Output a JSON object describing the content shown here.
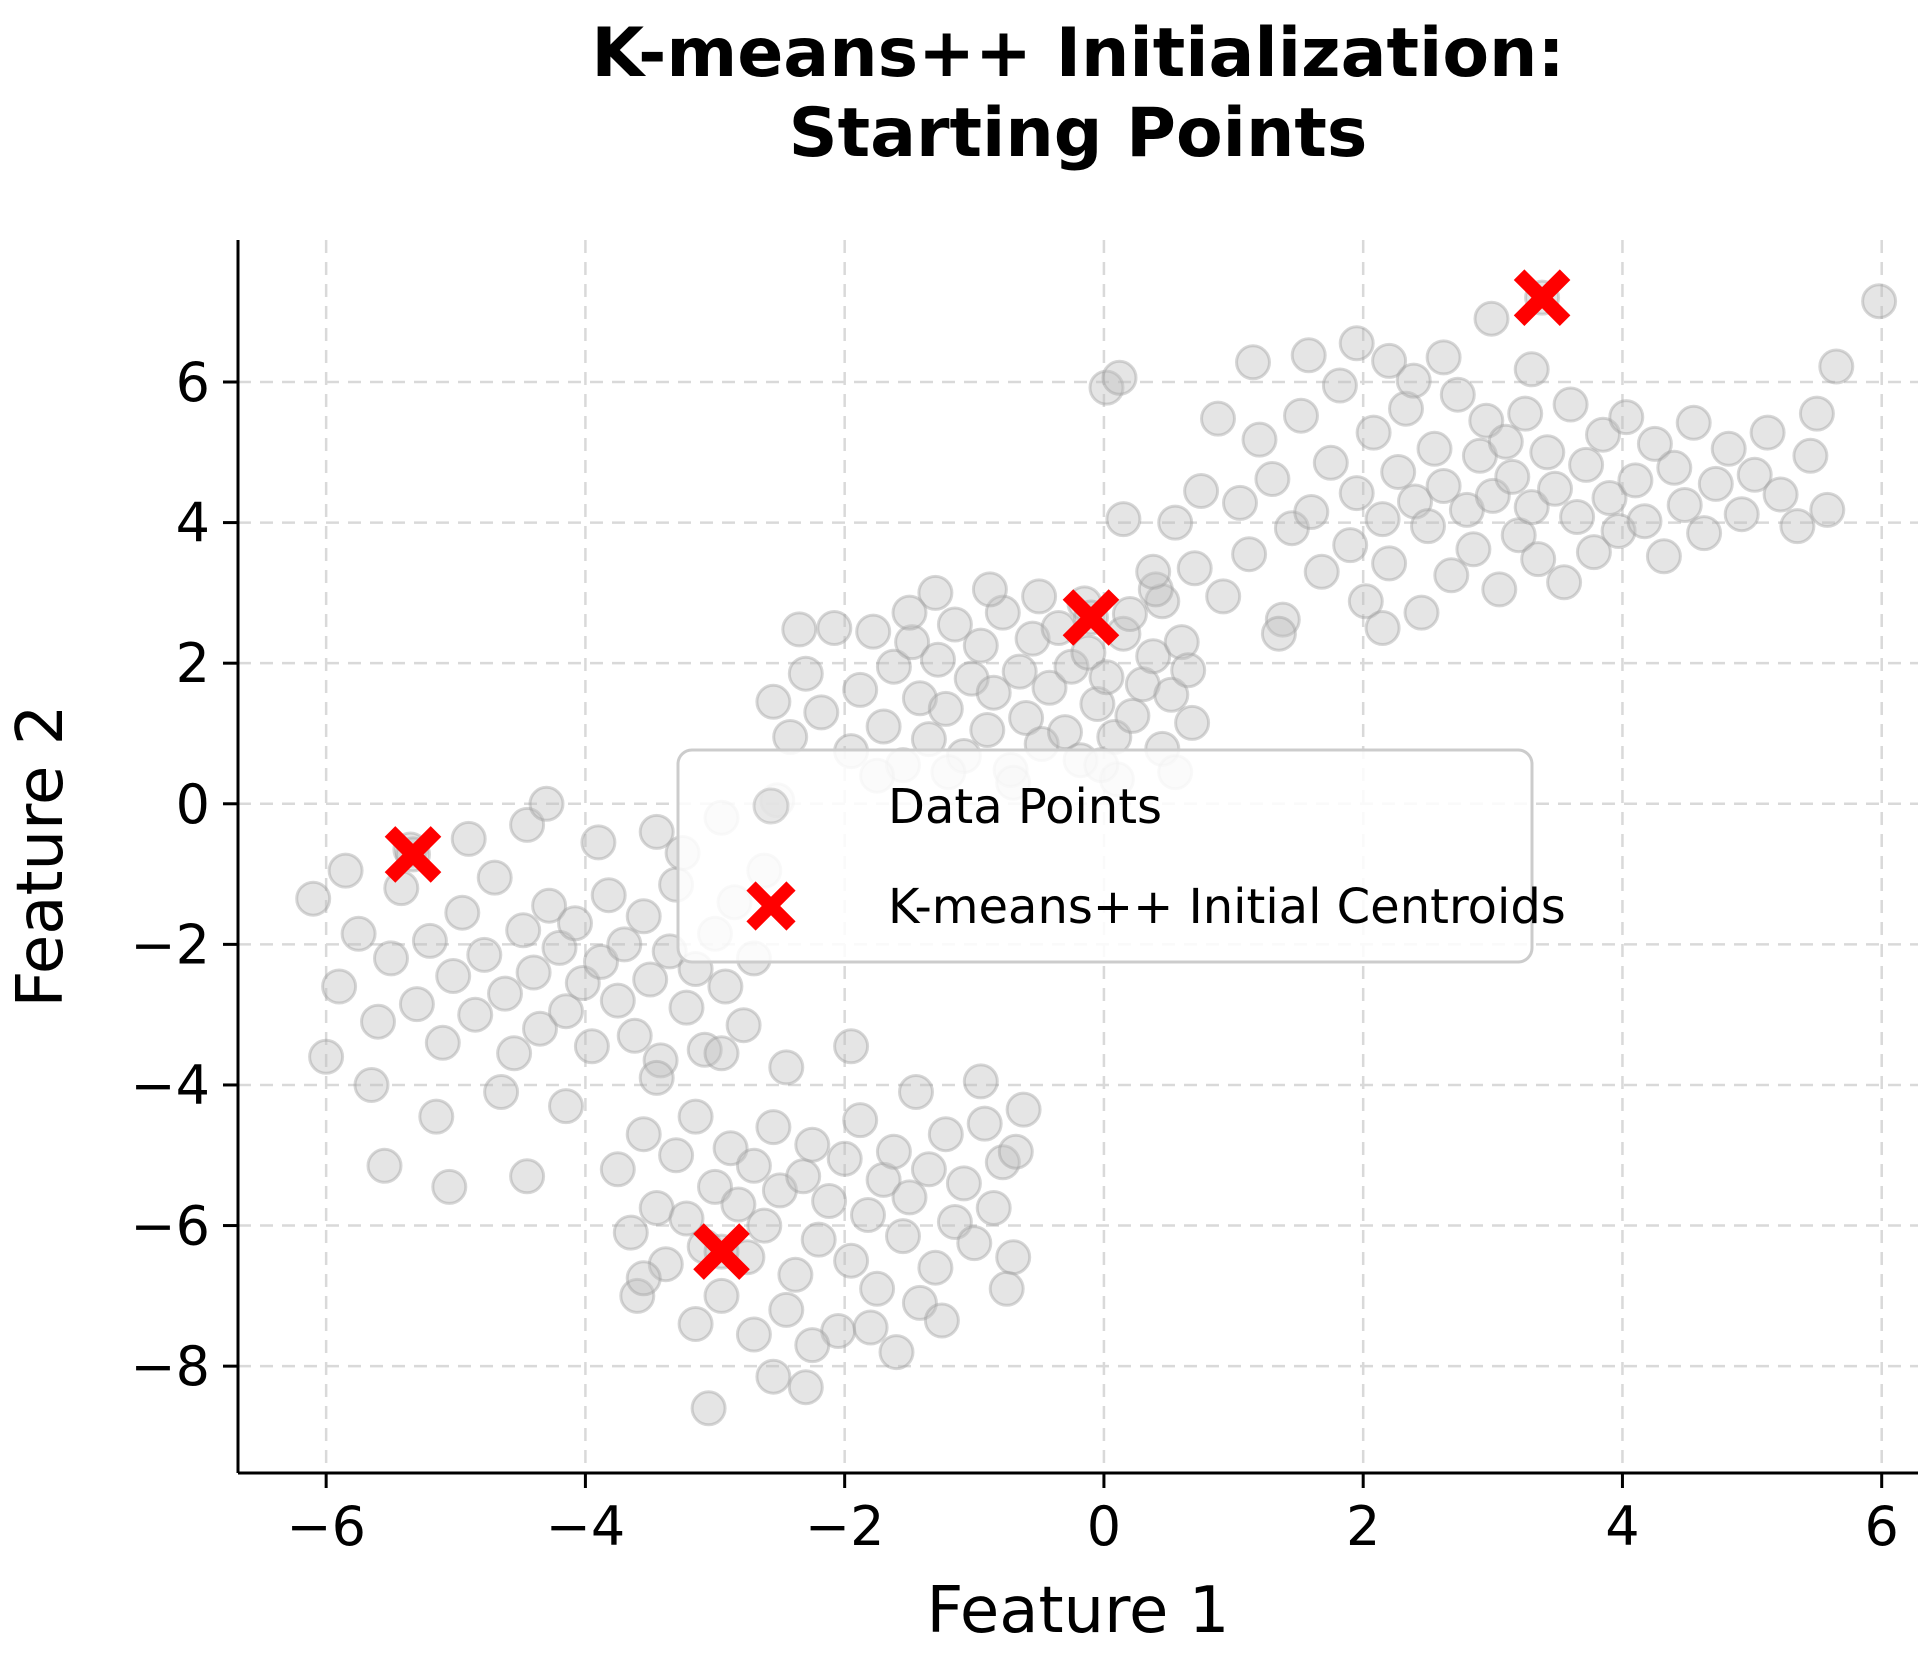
{
  "title": {
    "line1": "K-means++ Initialization:",
    "line2": "Starting Points"
  },
  "axes": {
    "xlabel": "Feature 1",
    "ylabel": "Feature 2"
  },
  "legend": {
    "items": [
      {
        "label": "Data Points",
        "marker": "circle"
      },
      {
        "label": "K-means++ Initial Centroids",
        "marker": "X"
      }
    ],
    "position": "center"
  },
  "colors": {
    "background": "#ffffff",
    "point_fill": "#bdbdbd",
    "point_edge": "#9c9c9c",
    "centroid_red": "#ff0000",
    "grid": "#d9d9d9",
    "spine": "#000000",
    "text": "#000000",
    "legend_border": "#cccccc",
    "legend_bg_opacity": 0.85
  },
  "chart_data": {
    "type": "scatter",
    "title": "K-means++ Initialization: Starting Points",
    "xlabel": "Feature 1",
    "ylabel": "Feature 2",
    "xlim": [
      -6.68,
      6.28
    ],
    "ylim": [
      -9.52,
      8.02
    ],
    "xticks": [
      -6,
      -4,
      -2,
      0,
      2,
      4,
      6
    ],
    "yticks": [
      6,
      4,
      2,
      0,
      -2,
      -4,
      -6,
      -8
    ],
    "grid": true,
    "legend_position": "center",
    "series": [
      {
        "name": "Data Points",
        "marker": "circle",
        "points": [
          [
            0.92,
            2.95
          ],
          [
            1.05,
            4.28
          ],
          [
            1.12,
            3.55
          ],
          [
            1.2,
            5.18
          ],
          [
            1.3,
            4.62
          ],
          [
            1.38,
            2.62
          ],
          [
            1.45,
            3.92
          ],
          [
            1.52,
            5.52
          ],
          [
            1.6,
            4.15
          ],
          [
            1.68,
            3.3
          ],
          [
            1.75,
            4.85
          ],
          [
            1.82,
            5.95
          ],
          [
            1.9,
            3.68
          ],
          [
            1.95,
            4.42
          ],
          [
            2.02,
            2.88
          ],
          [
            2.08,
            5.28
          ],
          [
            2.15,
            4.05
          ],
          [
            2.2,
            3.42
          ],
          [
            2.27,
            4.72
          ],
          [
            2.33,
            5.62
          ],
          [
            2.4,
            4.3
          ],
          [
            2.45,
            2.72
          ],
          [
            2.5,
            3.95
          ],
          [
            2.55,
            5.05
          ],
          [
            2.62,
            4.52
          ],
          [
            2.68,
            3.25
          ],
          [
            2.73,
            5.82
          ],
          [
            2.8,
            4.18
          ],
          [
            2.85,
            3.62
          ],
          [
            2.9,
            4.95
          ],
          [
            2.95,
            5.45
          ],
          [
            3.0,
            4.38
          ],
          [
            3.05,
            3.05
          ],
          [
            3.1,
            5.15
          ],
          [
            3.15,
            4.65
          ],
          [
            3.2,
            3.82
          ],
          [
            3.25,
            5.55
          ],
          [
            3.3,
            4.22
          ],
          [
            3.35,
            3.48
          ],
          [
            3.42,
            5.0
          ],
          [
            3.48,
            4.48
          ],
          [
            3.55,
            3.15
          ],
          [
            3.6,
            5.68
          ],
          [
            3.65,
            4.08
          ],
          [
            3.72,
            4.82
          ],
          [
            3.78,
            3.58
          ],
          [
            3.85,
            5.25
          ],
          [
            3.9,
            4.35
          ],
          [
            3.97,
            3.88
          ],
          [
            4.03,
            5.5
          ],
          [
            4.1,
            4.6
          ],
          [
            4.17,
            4.02
          ],
          [
            4.25,
            5.12
          ],
          [
            4.32,
            3.52
          ],
          [
            4.4,
            4.78
          ],
          [
            4.48,
            4.25
          ],
          [
            4.55,
            5.42
          ],
          [
            4.63,
            3.85
          ],
          [
            4.72,
            4.55
          ],
          [
            4.82,
            5.05
          ],
          [
            4.92,
            4.12
          ],
          [
            5.02,
            4.68
          ],
          [
            5.12,
            5.28
          ],
          [
            5.22,
            4.4
          ],
          [
            5.35,
            3.95
          ],
          [
            5.5,
            5.55
          ],
          [
            5.58,
            4.18
          ],
          [
            5.65,
            6.22
          ],
          [
            5.45,
            4.95
          ],
          [
            5.98,
            7.15
          ],
          [
            0.02,
            5.92
          ],
          [
            0.12,
            6.06
          ],
          [
            0.55,
            4.0
          ],
          [
            0.75,
            4.45
          ],
          [
            0.88,
            5.48
          ],
          [
            1.15,
            6.28
          ],
          [
            1.58,
            6.38
          ],
          [
            1.95,
            6.55
          ],
          [
            2.2,
            6.3
          ],
          [
            2.39,
            6.02
          ],
          [
            2.62,
            6.35
          ],
          [
            3.3,
            6.18
          ],
          [
            2.99,
            6.9
          ],
          [
            3.38,
            7.2
          ],
          [
            2.15,
            2.5
          ],
          [
            1.35,
            2.42
          ],
          [
            0.45,
            2.88
          ],
          [
            0.7,
            3.35
          ],
          [
            -2.55,
            1.45
          ],
          [
            -2.42,
            0.95
          ],
          [
            -2.3,
            1.85
          ],
          [
            -2.18,
            1.3
          ],
          [
            -2.08,
            2.5
          ],
          [
            -1.95,
            0.75
          ],
          [
            -1.88,
            1.62
          ],
          [
            -1.78,
            2.45
          ],
          [
            -1.7,
            1.1
          ],
          [
            -1.62,
            1.95
          ],
          [
            -1.55,
            0.55
          ],
          [
            -1.48,
            2.3
          ],
          [
            -1.42,
            1.5
          ],
          [
            -1.35,
            0.92
          ],
          [
            -1.28,
            2.05
          ],
          [
            -1.22,
            1.35
          ],
          [
            -1.15,
            2.55
          ],
          [
            -1.08,
            0.68
          ],
          [
            -1.02,
            1.78
          ],
          [
            -0.95,
            2.25
          ],
          [
            -0.9,
            1.05
          ],
          [
            -0.85,
            1.58
          ],
          [
            -0.78,
            2.72
          ],
          [
            -0.72,
            0.48
          ],
          [
            -0.65,
            1.88
          ],
          [
            -0.6,
            1.22
          ],
          [
            -0.55,
            2.35
          ],
          [
            -0.48,
            0.85
          ],
          [
            -0.42,
            1.65
          ],
          [
            -0.35,
            2.5
          ],
          [
            -0.3,
            1.02
          ],
          [
            -0.25,
            1.95
          ],
          [
            -0.18,
            0.62
          ],
          [
            -0.12,
            2.15
          ],
          [
            -0.05,
            1.42
          ],
          [
            0.02,
            1.8
          ],
          [
            0.08,
            0.95
          ],
          [
            0.15,
            2.42
          ],
          [
            0.22,
            1.25
          ],
          [
            0.3,
            1.7
          ],
          [
            0.38,
            2.1
          ],
          [
            0.45,
            0.78
          ],
          [
            0.52,
            1.55
          ],
          [
            0.6,
            2.3
          ],
          [
            0.68,
            1.15
          ],
          [
            -1.75,
            0.4
          ],
          [
            -1.3,
            3.0
          ],
          [
            -0.88,
            3.05
          ],
          [
            -0.5,
            2.95
          ],
          [
            -0.15,
            2.85
          ],
          [
            0.2,
            2.7
          ],
          [
            -2.35,
            2.48
          ],
          [
            -1.5,
            2.72
          ],
          [
            0.55,
            0.45
          ],
          [
            0.1,
            0.35
          ],
          [
            -0.7,
            0.3
          ],
          [
            -1.2,
            0.45
          ],
          [
            0.4,
            3.05
          ],
          [
            -0.1,
            2.65
          ],
          [
            0.15,
            4.05
          ],
          [
            0.38,
            3.3
          ],
          [
            -2.52,
            0.05
          ],
          [
            0.65,
            1.9
          ],
          [
            -0.02,
            0.55
          ],
          [
            -6.1,
            -1.35
          ],
          [
            -5.9,
            -2.6
          ],
          [
            -5.75,
            -1.85
          ],
          [
            -5.6,
            -3.1
          ],
          [
            -5.5,
            -2.2
          ],
          [
            -5.42,
            -1.2
          ],
          [
            -5.3,
            -2.85
          ],
          [
            -5.2,
            -1.95
          ],
          [
            -5.1,
            -3.4
          ],
          [
            -5.02,
            -2.45
          ],
          [
            -4.95,
            -1.55
          ],
          [
            -4.85,
            -3.0
          ],
          [
            -4.78,
            -2.15
          ],
          [
            -4.7,
            -1.05
          ],
          [
            -4.62,
            -2.7
          ],
          [
            -4.55,
            -3.55
          ],
          [
            -4.48,
            -1.8
          ],
          [
            -4.4,
            -2.4
          ],
          [
            -4.35,
            -3.2
          ],
          [
            -4.28,
            -1.45
          ],
          [
            -4.2,
            -2.05
          ],
          [
            -4.15,
            -2.95
          ],
          [
            -4.08,
            -1.7
          ],
          [
            -4.02,
            -2.55
          ],
          [
            -3.95,
            -3.45
          ],
          [
            -3.88,
            -2.25
          ],
          [
            -3.82,
            -1.3
          ],
          [
            -3.75,
            -2.8
          ],
          [
            -3.7,
            -2.0
          ],
          [
            -3.62,
            -3.3
          ],
          [
            -3.55,
            -1.6
          ],
          [
            -3.5,
            -2.5
          ],
          [
            -3.42,
            -3.65
          ],
          [
            -3.35,
            -2.1
          ],
          [
            -3.3,
            -1.15
          ],
          [
            -3.22,
            -2.9
          ],
          [
            -3.15,
            -2.35
          ],
          [
            -3.08,
            -3.5
          ],
          [
            -3.0,
            -1.85
          ],
          [
            -2.92,
            -2.6
          ],
          [
            -2.85,
            -1.4
          ],
          [
            -2.78,
            -3.15
          ],
          [
            -2.7,
            -2.2
          ],
          [
            -2.62,
            -0.95
          ],
          [
            -5.35,
            -0.65
          ],
          [
            -4.9,
            -0.5
          ],
          [
            -4.45,
            -0.3
          ],
          [
            -3.9,
            -0.55
          ],
          [
            -3.45,
            -0.4
          ],
          [
            -4.65,
            -4.1
          ],
          [
            -4.15,
            -4.3
          ],
          [
            -5.65,
            -4.0
          ],
          [
            -5.15,
            -4.45
          ],
          [
            -2.95,
            -0.2
          ],
          [
            -6.0,
            -3.6
          ],
          [
            -5.85,
            -0.95
          ],
          [
            -3.25,
            -0.7
          ],
          [
            -5.55,
            -5.15
          ],
          [
            -5.05,
            -5.45
          ],
          [
            -4.45,
            -5.3
          ],
          [
            -5.33,
            -0.72
          ],
          [
            -4.3,
            0.0
          ],
          [
            -3.75,
            -5.2
          ],
          [
            -3.65,
            -6.1
          ],
          [
            -3.55,
            -4.7
          ],
          [
            -3.45,
            -5.75
          ],
          [
            -3.38,
            -6.55
          ],
          [
            -3.3,
            -5.0
          ],
          [
            -3.22,
            -5.9
          ],
          [
            -3.15,
            -4.45
          ],
          [
            -3.08,
            -6.3
          ],
          [
            -3.0,
            -5.45
          ],
          [
            -2.95,
            -7.0
          ],
          [
            -2.88,
            -4.9
          ],
          [
            -2.82,
            -5.7
          ],
          [
            -2.75,
            -6.45
          ],
          [
            -2.7,
            -5.15
          ],
          [
            -2.62,
            -6.0
          ],
          [
            -2.55,
            -4.6
          ],
          [
            -2.5,
            -5.5
          ],
          [
            -2.45,
            -7.2
          ],
          [
            -2.38,
            -6.7
          ],
          [
            -2.32,
            -5.3
          ],
          [
            -2.25,
            -4.85
          ],
          [
            -2.2,
            -6.2
          ],
          [
            -2.12,
            -5.65
          ],
          [
            -2.05,
            -7.5
          ],
          [
            -2.0,
            -5.05
          ],
          [
            -1.95,
            -6.5
          ],
          [
            -1.88,
            -4.5
          ],
          [
            -1.82,
            -5.85
          ],
          [
            -1.75,
            -6.9
          ],
          [
            -1.7,
            -5.35
          ],
          [
            -1.62,
            -4.95
          ],
          [
            -1.55,
            -6.15
          ],
          [
            -1.5,
            -5.6
          ],
          [
            -1.42,
            -7.1
          ],
          [
            -1.35,
            -5.2
          ],
          [
            -1.3,
            -6.6
          ],
          [
            -1.22,
            -4.7
          ],
          [
            -1.15,
            -5.95
          ],
          [
            -1.08,
            -5.4
          ],
          [
            -1.0,
            -6.25
          ],
          [
            -0.92,
            -4.55
          ],
          [
            -0.85,
            -5.75
          ],
          [
            -0.78,
            -5.1
          ],
          [
            -0.7,
            -6.45
          ],
          [
            -0.62,
            -4.35
          ],
          [
            -3.15,
            -7.4
          ],
          [
            -2.7,
            -7.55
          ],
          [
            -2.25,
            -7.7
          ],
          [
            -1.8,
            -7.45
          ],
          [
            -3.05,
            -8.6
          ],
          [
            -2.55,
            -8.15
          ],
          [
            -3.45,
            -3.9
          ],
          [
            -2.95,
            -3.55
          ],
          [
            -2.45,
            -3.75
          ],
          [
            -1.95,
            -3.45
          ],
          [
            -1.45,
            -4.1
          ],
          [
            -0.95,
            -3.95
          ],
          [
            -0.68,
            -4.95
          ],
          [
            -3.6,
            -7.0
          ],
          [
            -2.95,
            -6.37
          ],
          [
            -2.3,
            -8.3
          ],
          [
            -3.55,
            -6.75
          ],
          [
            -1.6,
            -7.8
          ],
          [
            -1.25,
            -7.35
          ],
          [
            -0.75,
            -6.9
          ]
        ]
      },
      {
        "name": "K-means++ Initial Centroids",
        "marker": "X",
        "points": [
          [
            3.38,
            7.2
          ],
          [
            -0.1,
            2.65
          ],
          [
            -5.33,
            -0.72
          ],
          [
            -2.95,
            -6.37
          ]
        ]
      }
    ]
  }
}
